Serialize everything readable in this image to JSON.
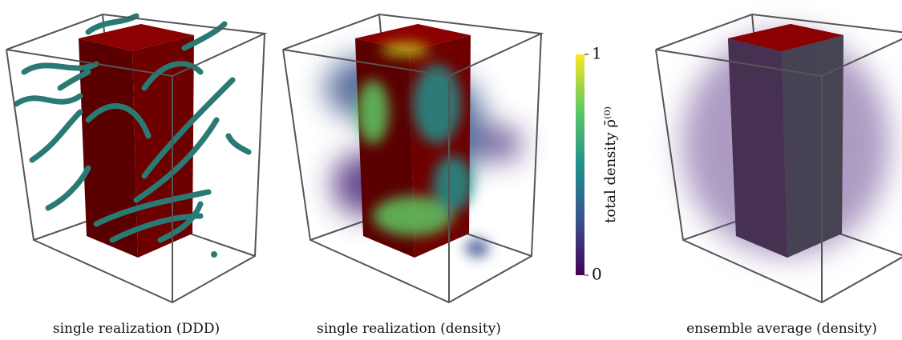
{
  "panels": [
    {
      "caption": "single realization (DDD)"
    },
    {
      "caption": "single realization (density)"
    },
    {
      "caption": "ensemble average (density)"
    }
  ],
  "colorbar": {
    "label": "total density ρ̄⁽⁰⁾",
    "ticks": [
      0,
      1
    ]
  }
}
